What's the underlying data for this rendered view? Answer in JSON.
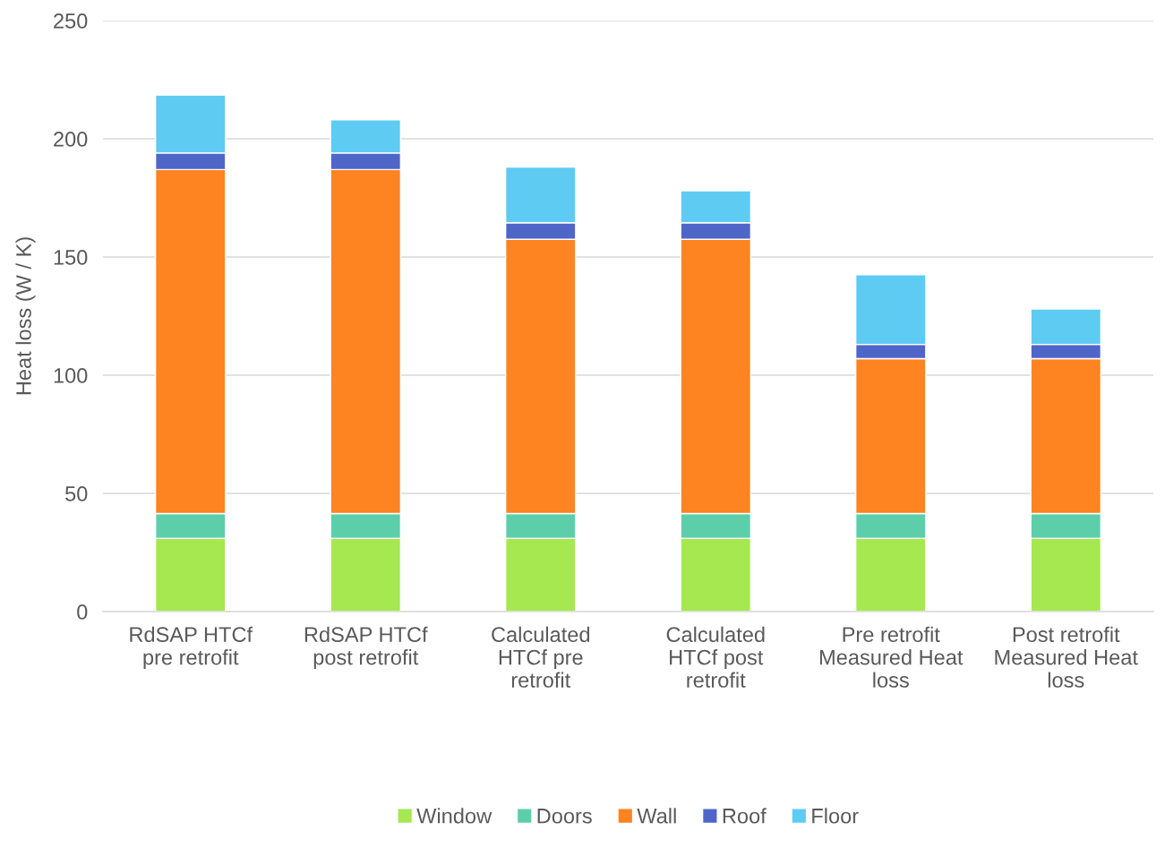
{
  "chart_data": {
    "type": "bar",
    "stacked": true,
    "ylabel": "Heat loss (W / K)",
    "categories": [
      "RdSAP HTCf pre retrofit",
      "RdSAP HTCf post retrofit",
      "Calculated HTCf pre retrofit",
      "Calculated HTCf post retrofit",
      "Pre retrofit Measured Heat loss",
      "Post retrofit Measured Heat loss"
    ],
    "series": [
      {
        "name": "Window",
        "color": "#a5e84f",
        "values": [
          31,
          31,
          31,
          31,
          31,
          31
        ]
      },
      {
        "name": "Doors",
        "color": "#5ccfaa",
        "values": [
          10.5,
          10.5,
          10.5,
          10.5,
          10.5,
          10.5
        ]
      },
      {
        "name": "Wall",
        "color": "#fe8321",
        "values": [
          145.5,
          145.5,
          116,
          116,
          65.5,
          65.5
        ]
      },
      {
        "name": "Roof",
        "color": "#4f66c9",
        "values": [
          7,
          7,
          7,
          7,
          6,
          6
        ]
      },
      {
        "name": "Floor",
        "color": "#5ecbf3",
        "values": [
          24.5,
          14,
          23.5,
          13.5,
          29.5,
          15
        ]
      }
    ],
    "ylim": [
      0,
      250
    ],
    "yticks": [
      0,
      50,
      100,
      150,
      200,
      250
    ],
    "grid": "y",
    "legend": "bottom"
  }
}
